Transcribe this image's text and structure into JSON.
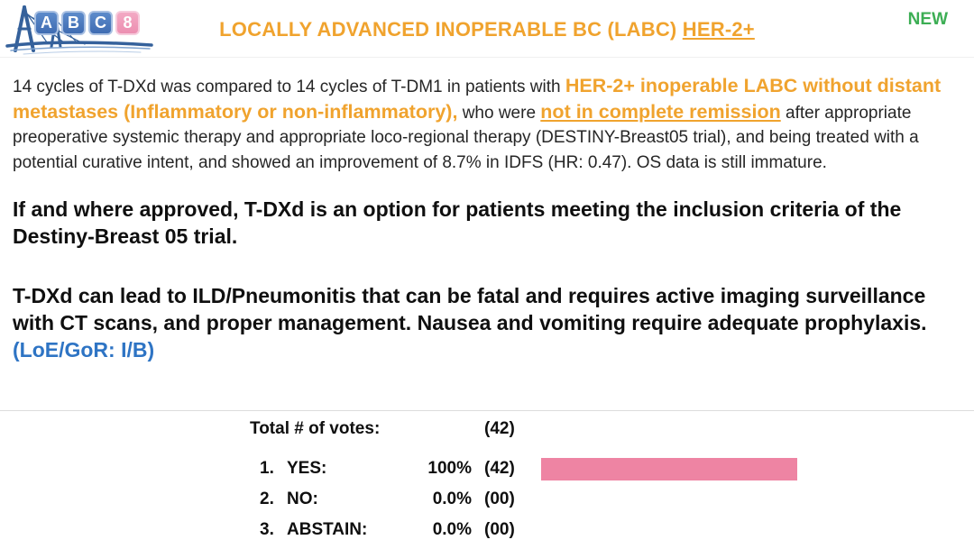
{
  "header": {
    "logo_tiles": [
      "A",
      "B",
      "C",
      "8"
    ],
    "title": "LOCALLY ADVANCED INOPERABLE BC (LABC) ",
    "title_underlined": "HER-2+",
    "new_badge": "NEW"
  },
  "paragraph1": {
    "seg1": "14 cycles of T-DXd was compared to 14 cycles of T-DM1 in patients with ",
    "seg2_highlight": "HER-2+ inoperable LABC without distant metastases (Inflammatory or non-inflammatory),",
    "seg3": " who were ",
    "seg4_highlight_underlined": "not in complete remission",
    "seg5": " after appropriate preoperative systemic therapy and appropriate loco-regional therapy (DESTINY-Breast05 trial), and being treated with a potential curative intent, and showed an improvement of 8.7% in IDFS (HR: 0.47). OS data is still immature."
  },
  "paragraph2": "If and where approved, T-DXd is an option for patients meeting the inclusion criteria of the Destiny-Breast 05 trial.",
  "paragraph3": {
    "text": "T-DXd can lead to ILD/Pneumonitis that can be fatal and requires active imaging surveillance with CT scans, and proper management. Nausea and vomiting require adequate prophylaxis.",
    "loe_gor": "(LoE/GoR: I/B)"
  },
  "vote": {
    "total_label": "Total # of votes:",
    "total_count": "(42)",
    "rows": [
      {
        "num": "1.",
        "label": "YES:",
        "pct": "100%",
        "count": "(42)",
        "bar_pct": 100
      },
      {
        "num": "2.",
        "label": "NO:",
        "pct": "0.0%",
        "count": "(00)",
        "bar_pct": 0
      },
      {
        "num": "3.",
        "label": "ABSTAIN:",
        "pct": "0.0%",
        "count": "(00)",
        "bar_pct": 0
      }
    ]
  },
  "chart_data": {
    "type": "bar",
    "orientation": "horizontal",
    "title": "Total # of votes: (42)",
    "categories": [
      "YES",
      "NO",
      "ABSTAIN"
    ],
    "values": [
      100,
      0,
      0
    ],
    "counts": [
      42,
      0,
      0
    ],
    "value_unit": "%",
    "xlim": [
      0,
      100
    ],
    "bar_color": "#EE84A3",
    "grid": false,
    "legend": false
  },
  "colors": {
    "accent_orange": "#F0A32E",
    "new_green": "#3CAE54",
    "loe_blue": "#2E74C4",
    "bar_pink": "#EE84A3",
    "tile_blue": "#4F7CBE",
    "tile_pink": "#EF9BBA"
  }
}
